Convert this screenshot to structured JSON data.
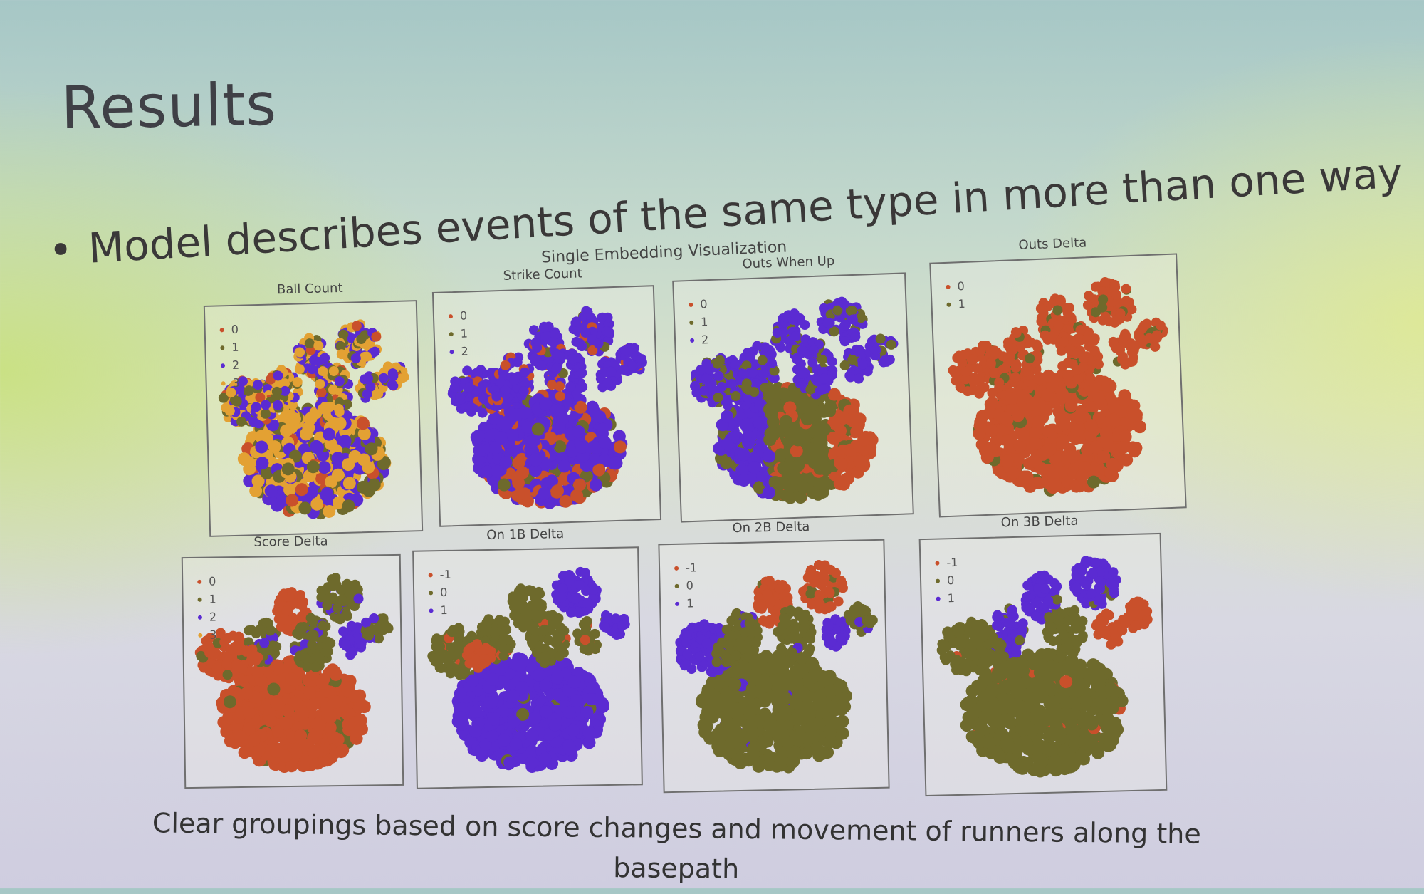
{
  "slide": {
    "title": "Results",
    "bullet": "Model describes events of the same type in more than one way",
    "figure_title": "Single Embedding Visualization",
    "caption": "Clear groupings based on score changes and movement of runners along the basepath"
  },
  "colors": {
    "red": "#c9502b",
    "olive": "#6e6a2c",
    "purple": "#5b2bd2",
    "orange": "#e3a133"
  },
  "plots": [
    {
      "title": "Ball Count",
      "legend": [
        "0",
        "1",
        "2",
        "3"
      ],
      "legend_colors": [
        "#c9502b",
        "#6e6a2c",
        "#5b2bd2",
        "#e3a133"
      ],
      "scheme": "ball"
    },
    {
      "title": "Strike Count",
      "legend": [
        "0",
        "1",
        "2"
      ],
      "legend_colors": [
        "#c9502b",
        "#6e6a2c",
        "#5b2bd2"
      ],
      "scheme": "strike"
    },
    {
      "title": "Outs When Up",
      "legend": [
        "0",
        "1",
        "2"
      ],
      "legend_colors": [
        "#c9502b",
        "#6e6a2c",
        "#5b2bd2"
      ],
      "scheme": "outsup"
    },
    {
      "title": "Outs Delta",
      "legend": [
        "0",
        "1"
      ],
      "legend_colors": [
        "#c9502b",
        "#6e6a2c"
      ],
      "scheme": "outsdelta"
    },
    {
      "title": "Score Delta",
      "legend": [
        "0",
        "1",
        "2",
        "3"
      ],
      "legend_colors": [
        "#c9502b",
        "#6e6a2c",
        "#5b2bd2",
        "#e3a133"
      ],
      "scheme": "score"
    },
    {
      "title": "On 1B Delta",
      "legend": [
        "-1",
        "0",
        "1"
      ],
      "legend_colors": [
        "#c9502b",
        "#6e6a2c",
        "#5b2bd2"
      ],
      "scheme": "on1b"
    },
    {
      "title": "On 2B Delta",
      "legend": [
        "-1",
        "0",
        "1"
      ],
      "legend_colors": [
        "#c9502b",
        "#6e6a2c",
        "#5b2bd2"
      ],
      "scheme": "on2b"
    },
    {
      "title": "On 3B Delta",
      "legend": [
        "-1",
        "0",
        "1"
      ],
      "legend_colors": [
        "#c9502b",
        "#6e6a2c",
        "#5b2bd2"
      ],
      "scheme": "on3b"
    }
  ]
}
